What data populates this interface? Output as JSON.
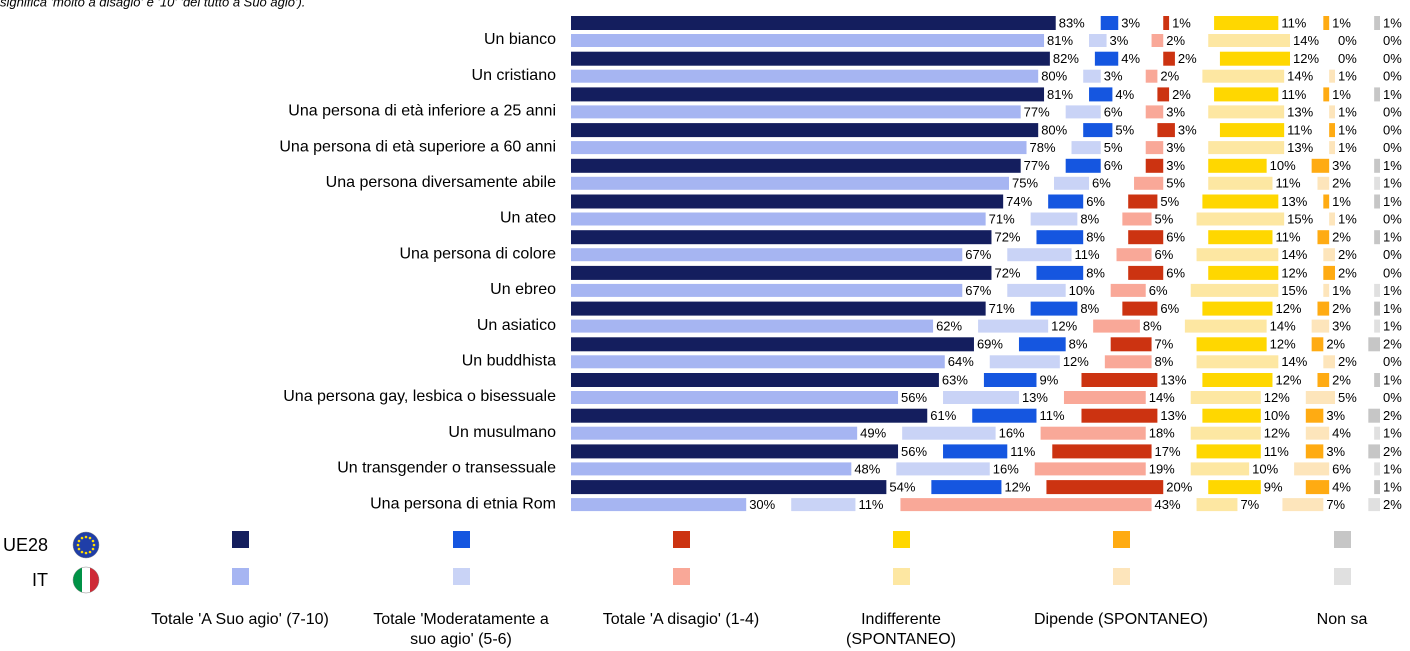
{
  "chart_data": {
    "type": "grouped-stacked-bar",
    "note": "significa 'molto a disagio' e '10' 'del tutto a Suo agio').",
    "categories": [
      "Un bianco",
      "Un cristiano",
      "Una persona di età inferiore a 25 anni",
      "Una persona di età superiore a 60 anni",
      "Una persona diversamente abile",
      "Un ateo",
      "Una persona di colore",
      "Un ebreo",
      "Un asiatico",
      "Un buddhista",
      "Una persona gay, lesbica o bisessuale",
      "Un musulmano",
      "Un transgender o transessuale",
      "Una persona di etnia Rom"
    ],
    "regions": [
      "UE28",
      "IT"
    ],
    "series": [
      {
        "name": "Totale 'A Suo agio' (7-10)",
        "colors": [
          "#141e5e",
          "#a6b5f2"
        ],
        "values": [
          [
            83,
            81
          ],
          [
            82,
            80
          ],
          [
            81,
            77
          ],
          [
            80,
            78
          ],
          [
            77,
            75
          ],
          [
            74,
            71
          ],
          [
            72,
            67
          ],
          [
            72,
            67
          ],
          [
            71,
            62
          ],
          [
            69,
            64
          ],
          [
            63,
            56
          ],
          [
            61,
            49
          ],
          [
            56,
            48
          ],
          [
            54,
            30
          ]
        ],
        "value_labels": [
          [
            "83%",
            "81%"
          ],
          [
            "82%",
            "80%"
          ],
          [
            "81%",
            "77%"
          ],
          [
            "80%",
            "78%"
          ],
          [
            "77%",
            "75%"
          ],
          [
            "74%",
            "71%"
          ],
          [
            "72%",
            "67%"
          ],
          [
            "72%",
            "67%"
          ],
          [
            "71%",
            "62%"
          ],
          [
            "69%",
            "64%"
          ],
          [
            "63%",
            "56%"
          ],
          [
            "61%",
            "49%"
          ],
          [
            "56%",
            "48%"
          ],
          [
            "54%",
            "30%"
          ]
        ]
      },
      {
        "name": "Totale 'Moderatamente a suo agio' (5-6)",
        "colors": [
          "#1556e0",
          "#c9d3f6"
        ],
        "values": [
          [
            3,
            3
          ],
          [
            4,
            3
          ],
          [
            4,
            6
          ],
          [
            5,
            5
          ],
          [
            6,
            6
          ],
          [
            6,
            8
          ],
          [
            8,
            11
          ],
          [
            8,
            10
          ],
          [
            8,
            12
          ],
          [
            8,
            12
          ],
          [
            9,
            13
          ],
          [
            11,
            16
          ],
          [
            11,
            16
          ],
          [
            12,
            11
          ]
        ],
        "value_labels": [
          [
            "3%",
            "3%"
          ],
          [
            "4%",
            "3%"
          ],
          [
            "4%",
            "6%"
          ],
          [
            "5%",
            "5%"
          ],
          [
            "6%",
            "6%"
          ],
          [
            "6%",
            "8%"
          ],
          [
            "8%",
            "11%"
          ],
          [
            "8%",
            "10%"
          ],
          [
            "8%",
            "12%"
          ],
          [
            "8%",
            "12%"
          ],
          [
            "9%",
            "13%"
          ],
          [
            "11%",
            "16%"
          ],
          [
            "11%",
            "16%"
          ],
          [
            "12%",
            "11%"
          ]
        ]
      },
      {
        "name": "Totale 'A disagio' (1-4)",
        "colors": [
          "#cc3311",
          "#f9a898"
        ],
        "values": [
          [
            1,
            2
          ],
          [
            2,
            2
          ],
          [
            2,
            3
          ],
          [
            3,
            3
          ],
          [
            3,
            5
          ],
          [
            5,
            5
          ],
          [
            6,
            6
          ],
          [
            6,
            6
          ],
          [
            6,
            8
          ],
          [
            7,
            8
          ],
          [
            13,
            14
          ],
          [
            13,
            18
          ],
          [
            17,
            19
          ],
          [
            20,
            43
          ]
        ],
        "value_labels": [
          [
            "1%",
            "2%"
          ],
          [
            "2%",
            "2%"
          ],
          [
            "2%",
            "3%"
          ],
          [
            "3%",
            "3%"
          ],
          [
            "3%",
            "5%"
          ],
          [
            "5%",
            "5%"
          ],
          [
            "6%",
            "6%"
          ],
          [
            "6%",
            "6%"
          ],
          [
            "6%",
            "8%"
          ],
          [
            "7%",
            "8%"
          ],
          [
            "13%",
            "14%"
          ],
          [
            "13%",
            "18%"
          ],
          [
            "17%",
            "19%"
          ],
          [
            "20%",
            "43%"
          ]
        ]
      },
      {
        "name": "Indifferente (SPONTANEO)",
        "colors": [
          "#ffd700",
          "#fde7a2"
        ],
        "values": [
          [
            11,
            14
          ],
          [
            12,
            14
          ],
          [
            11,
            13
          ],
          [
            11,
            13
          ],
          [
            10,
            11
          ],
          [
            13,
            15
          ],
          [
            11,
            14
          ],
          [
            12,
            15
          ],
          [
            12,
            14
          ],
          [
            12,
            14
          ],
          [
            12,
            12
          ],
          [
            10,
            12
          ],
          [
            11,
            10
          ],
          [
            9,
            7
          ]
        ],
        "value_labels": [
          [
            "11%",
            "14%"
          ],
          [
            "12%",
            "14%"
          ],
          [
            "11%",
            "13%"
          ],
          [
            "11%",
            "13%"
          ],
          [
            "10%",
            "11%"
          ],
          [
            "13%",
            "15%"
          ],
          [
            "11%",
            "14%"
          ],
          [
            "12%",
            "15%"
          ],
          [
            "12%",
            "14%"
          ],
          [
            "12%",
            "14%"
          ],
          [
            "12%",
            "12%"
          ],
          [
            "10%",
            "12%"
          ],
          [
            "11%",
            "10%"
          ],
          [
            "9%",
            "7%"
          ]
        ]
      },
      {
        "name": "Dipende (SPONTANEO)",
        "colors": [
          "#ffab12",
          "#fde5bb"
        ],
        "values": [
          [
            1,
            0
          ],
          [
            0,
            1
          ],
          [
            1,
            1
          ],
          [
            1,
            1
          ],
          [
            3,
            2
          ],
          [
            1,
            1
          ],
          [
            2,
            2
          ],
          [
            2,
            1
          ],
          [
            2,
            3
          ],
          [
            2,
            2
          ],
          [
            2,
            5
          ],
          [
            3,
            4
          ],
          [
            3,
            6
          ],
          [
            4,
            7
          ]
        ],
        "value_labels": [
          [
            "1%",
            "0%"
          ],
          [
            "0%",
            "1%"
          ],
          [
            "1%",
            "1%"
          ],
          [
            "1%",
            "1%"
          ],
          [
            "3%",
            "2%"
          ],
          [
            "1%",
            "1%"
          ],
          [
            "2%",
            "2%"
          ],
          [
            "2%",
            "1%"
          ],
          [
            "2%",
            "3%"
          ],
          [
            "2%",
            "2%"
          ],
          [
            "2%",
            "5%"
          ],
          [
            "3%",
            "4%"
          ],
          [
            "3%",
            "6%"
          ],
          [
            "4%",
            "7%"
          ]
        ]
      },
      {
        "name": "Non sa",
        "colors": [
          "#c6c6c6",
          "#e0e0e0"
        ],
        "values": [
          [
            1,
            0
          ],
          [
            0,
            0
          ],
          [
            1,
            0
          ],
          [
            0,
            0
          ],
          [
            1,
            1
          ],
          [
            1,
            0
          ],
          [
            1,
            0
          ],
          [
            0,
            1
          ],
          [
            1,
            1
          ],
          [
            2,
            0
          ],
          [
            1,
            0
          ],
          [
            2,
            1
          ],
          [
            2,
            1
          ],
          [
            1,
            2
          ]
        ],
        "value_labels": [
          [
            "1%",
            "0%"
          ],
          [
            "0%",
            "0%"
          ],
          [
            "1%",
            "0%"
          ],
          [
            "0%",
            "0%"
          ],
          [
            "1%",
            "1%"
          ],
          [
            "1%",
            "0%"
          ],
          [
            "1%",
            "0%"
          ],
          [
            "0%",
            "1%"
          ],
          [
            "1%",
            "1%"
          ],
          [
            "2%",
            "0%"
          ],
          [
            "1%",
            "0%"
          ],
          [
            "2%",
            "1%"
          ],
          [
            "2%",
            "1%"
          ],
          [
            "1%",
            "2%"
          ]
        ]
      }
    ]
  }
}
